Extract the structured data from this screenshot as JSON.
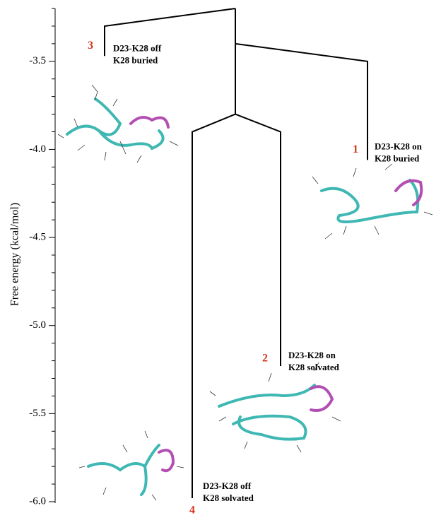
{
  "chart_data": {
    "type": "disconnectivity",
    "y_label": "Free energy (kcal/mol)",
    "ylim": [
      -6.0,
      -3.2
    ],
    "yticks": [
      -3.5,
      {
        "value": -4.0,
        "label": "-4.0"
      },
      -4.5,
      {
        "value": -5.0,
        "label": "-5.0"
      },
      -5.5,
      {
        "value": -6.0,
        "label": "-6.0"
      }
    ],
    "minor_yticks": [
      -5.9,
      -5.8,
      -5.7,
      -5.6,
      -5.4,
      -5.3,
      -5.2,
      -5.1,
      -4.9,
      -4.8,
      -4.7,
      -4.6,
      -4.4,
      -4.3,
      -4.2,
      -4.1,
      -3.9,
      -3.8,
      -3.7,
      -3.6,
      -3.4,
      -3.3,
      -3.2
    ],
    "nodes": [
      {
        "energy": -3.2
      },
      {
        "energy": -3.4
      },
      {
        "energy": -3.8
      }
    ],
    "minima": [
      {
        "id": "3",
        "label": [
          "D23-K28 off",
          "K28 buried"
        ],
        "energy": -3.47
      },
      {
        "id": "4",
        "label": [
          "D23-K28 off",
          "K28 solvated"
        ],
        "energy": -5.98
      },
      {
        "id": "2",
        "label": [
          "D23-K28 on",
          "K28 solvated"
        ],
        "energy": -5.23
      },
      {
        "id": "1",
        "label": [
          "D23-K28 on",
          "K28 buried"
        ],
        "energy": -4.06
      }
    ],
    "color": "#000000",
    "id_color": "#d8341f"
  }
}
